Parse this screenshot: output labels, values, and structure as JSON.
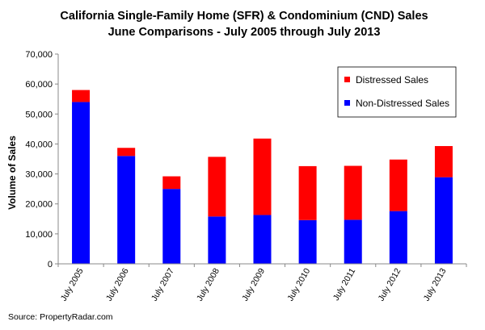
{
  "chart_data": {
    "type": "bar",
    "stacked": true,
    "title": "California Single-Family Home (SFR) & Condominium (CND) Sales",
    "subtitle": "June Comparisons - July 2005 through July 2013",
    "ylabel": "Volume of Sales",
    "xlabel": "",
    "ylim": [
      0,
      70000
    ],
    "yticks": [
      "0",
      "10,000",
      "20,000",
      "30,000",
      "40,000",
      "50,000",
      "60,000",
      "70,000"
    ],
    "ytick_values": [
      0,
      10000,
      20000,
      30000,
      40000,
      50000,
      60000,
      70000
    ],
    "categories": [
      "July 2005",
      "July 2006",
      "July 2007",
      "July 2008",
      "July 2009",
      "July 2010",
      "July 2011",
      "July 2012",
      "July 2013"
    ],
    "series": [
      {
        "name": "Non-Distressed Sales",
        "color": "#0000ff",
        "values": [
          54000,
          36000,
          25000,
          15800,
          16300,
          14600,
          14700,
          17600,
          28900
        ]
      },
      {
        "name": "Distressed Sales",
        "color": "#ff0000",
        "values": [
          4000,
          2700,
          4200,
          19900,
          25500,
          18000,
          18000,
          17200,
          10400
        ]
      }
    ],
    "legend": {
      "placement": "top-right",
      "entries": [
        "Distressed Sales",
        "Non-Distressed Sales"
      ],
      "colors": [
        "#ff0000",
        "#0000ff"
      ]
    },
    "grid": false
  },
  "source": "Source: PropertyRadar.com"
}
